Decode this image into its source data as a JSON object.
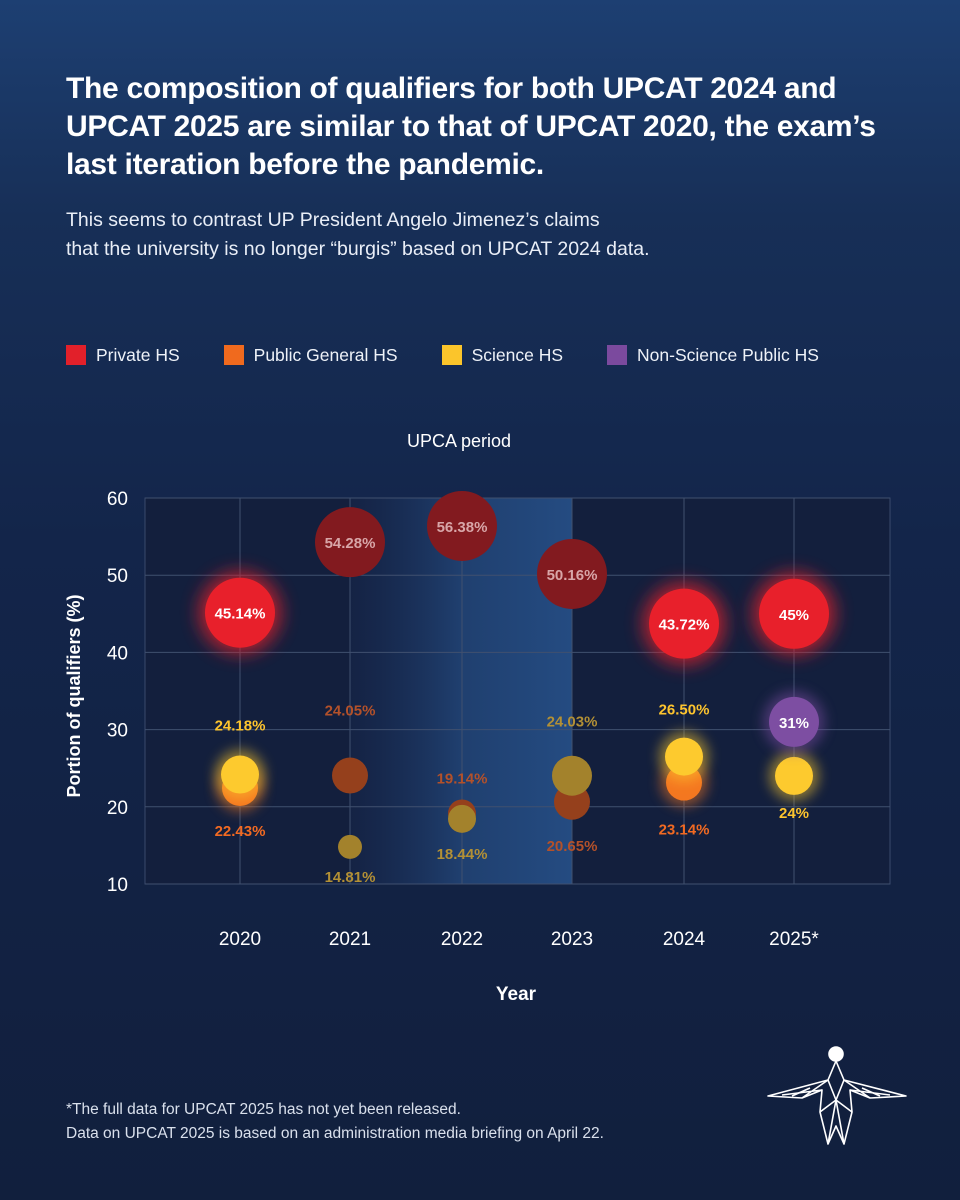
{
  "headline": "The composition of qualifiers for both UPCAT 2024 and UPCAT 2025 are similar to that of UPCAT 2020, the exam’s last iteration before the pandemic.",
  "subhead": {
    "line1": "This seems to contrast UP President Angelo Jimenez’s claims",
    "line2": "that the university is no longer “burgis” based on UPCAT 2024 data."
  },
  "legend": [
    {
      "label": "Private HS",
      "color": "#e2202a"
    },
    {
      "label": "Public General HS",
      "color": "#f06a1e"
    },
    {
      "label": "Science HS",
      "color": "#fbc52b"
    },
    {
      "label": "Non-Science Public HS",
      "color": "#7b4a9e"
    }
  ],
  "chart_data": {
    "type": "scatter",
    "title": "",
    "shaded_region_label": "UPCA period",
    "shaded_region": [
      "2021",
      "2023"
    ],
    "xlabel": "Year",
    "ylabel": "Portion of qualifiers (%)",
    "categories": [
      "2020",
      "2021",
      "2022",
      "2023",
      "2024",
      "2025*"
    ],
    "ylim": [
      10,
      60
    ],
    "yticks": [
      10,
      20,
      30,
      40,
      50,
      60
    ],
    "grid": true,
    "series": [
      {
        "name": "Private HS",
        "color": "#e2202a",
        "values": [
          45.14,
          54.28,
          56.38,
          50.16,
          43.72,
          45
        ],
        "labels": [
          "45.14%",
          "54.28%",
          "56.38%",
          "50.16%",
          "43.72%",
          "45%"
        ]
      },
      {
        "name": "Public General HS",
        "color": "#f06a1e",
        "values": [
          22.43,
          24.05,
          19.14,
          20.65,
          23.14,
          null
        ],
        "labels": [
          "22.43%",
          "24.05%",
          "19.14%",
          "20.65%",
          "23.14%",
          null
        ]
      },
      {
        "name": "Science HS",
        "color": "#fbc52b",
        "values": [
          24.18,
          14.81,
          18.44,
          24.03,
          26.5,
          24
        ],
        "labels": [
          "24.18%",
          "14.81%",
          "18.44%",
          "24.03%",
          "26.50%",
          "24%"
        ]
      },
      {
        "name": "Non-Science Public HS",
        "color": "#7b4a9e",
        "values": [
          null,
          null,
          null,
          null,
          null,
          31
        ],
        "labels": [
          null,
          null,
          null,
          null,
          null,
          "31%"
        ]
      }
    ]
  },
  "footnote": {
    "line1": "*The full data for UPCAT 2025 has not yet been released.",
    "line2": "Data on UPCAT 2025 is based on an administration media briefing on April 22."
  },
  "logo": {
    "icon": "winged-figure-logo"
  }
}
